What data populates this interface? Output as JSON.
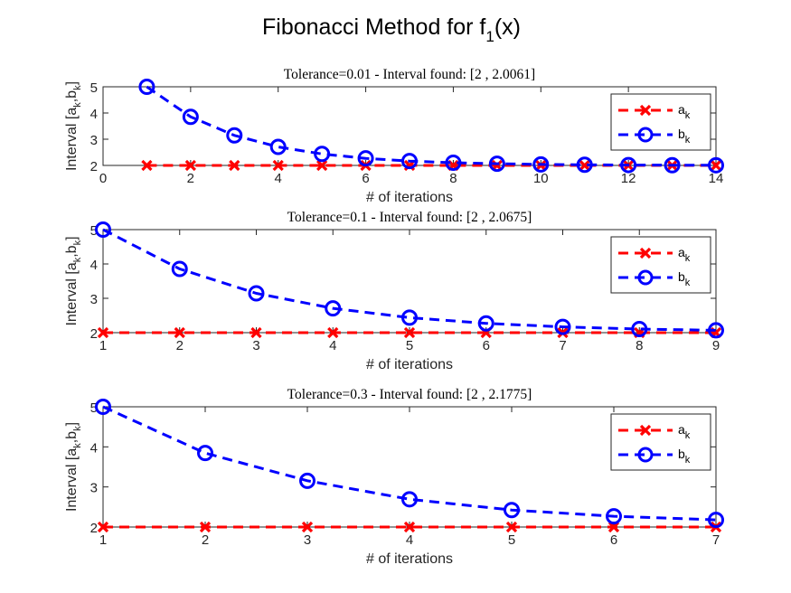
{
  "figure": {
    "title_main": "Fibonacci Method for f",
    "title_sub": "1",
    "title_tail": "(x)"
  },
  "colors": {
    "a_series": "#ff0000",
    "b_series": "#0000ff",
    "axis": "#262626"
  },
  "chart_data": [
    {
      "type": "line",
      "title": "Tolerance=0.01 - Interval found: [2 , 2.0061]",
      "xlabel": "# of iterations",
      "ylabel": {
        "main": "Interval [a",
        "s1": "k",
        "mid": ",b",
        "s2": "k",
        "end": "]"
      },
      "xlim": [
        0,
        14
      ],
      "ylim": [
        2,
        5
      ],
      "xticks": [
        0,
        2,
        4,
        6,
        8,
        10,
        12,
        14
      ],
      "yticks": [
        2,
        3,
        4,
        5
      ],
      "legend_position": "top-right",
      "x": [
        1,
        2,
        3,
        4,
        5,
        6,
        7,
        8,
        9,
        10,
        11,
        12,
        13,
        14
      ],
      "series": [
        {
          "key": "a",
          "label": "a",
          "label_sub": "k",
          "marker": "x",
          "values": [
            2,
            2,
            2,
            2,
            2,
            2,
            2,
            2,
            2,
            2,
            2,
            2,
            2,
            2
          ]
        },
        {
          "key": "b",
          "label": "b",
          "label_sub": "k",
          "marker": "o",
          "values": [
            5,
            3.854,
            3.146,
            2.708,
            2.438,
            2.27,
            2.167,
            2.103,
            2.064,
            2.039,
            2.025,
            2.015,
            2.01,
            2.0061
          ]
        }
      ]
    },
    {
      "type": "line",
      "title": "Tolerance=0.1 - Interval found: [2 , 2.0675]",
      "xlabel": "# of iterations",
      "ylabel": {
        "main": "Interval [a",
        "s1": "k",
        "mid": ",b",
        "s2": "k",
        "end": "]"
      },
      "xlim": [
        1,
        9
      ],
      "ylim": [
        2,
        5
      ],
      "xticks": [
        1,
        2,
        3,
        4,
        5,
        6,
        7,
        8,
        9
      ],
      "yticks": [
        2,
        3,
        4,
        5
      ],
      "legend_position": "top-right",
      "x": [
        1,
        2,
        3,
        4,
        5,
        6,
        7,
        8,
        9
      ],
      "series": [
        {
          "key": "a",
          "label": "a",
          "label_sub": "k",
          "marker": "x",
          "values": [
            2,
            2,
            2,
            2,
            2,
            2,
            2,
            2,
            2
          ]
        },
        {
          "key": "b",
          "label": "b",
          "label_sub": "k",
          "marker": "o",
          "values": [
            5,
            3.854,
            3.146,
            2.708,
            2.438,
            2.27,
            2.168,
            2.105,
            2.0675
          ]
        }
      ]
    },
    {
      "type": "line",
      "title": "Tolerance=0.3 - Interval found: [2 , 2.1775]",
      "xlabel": "# of iterations",
      "ylabel": {
        "main": "Interval [a",
        "s1": "k",
        "mid": ",b",
        "s2": "k",
        "end": "]"
      },
      "xlim": [
        1,
        7
      ],
      "ylim": [
        2,
        5
      ],
      "xticks": [
        1,
        2,
        3,
        4,
        5,
        6,
        7
      ],
      "yticks": [
        2,
        3,
        4,
        5
      ],
      "legend_position": "top-right",
      "x": [
        1,
        2,
        3,
        4,
        5,
        6,
        7
      ],
      "series": [
        {
          "key": "a",
          "label": "a",
          "label_sub": "k",
          "marker": "x",
          "values": [
            2,
            2,
            2,
            2,
            2,
            2,
            2
          ]
        },
        {
          "key": "b",
          "label": "b",
          "label_sub": "k",
          "marker": "o",
          "values": [
            5,
            3.846,
            3.154,
            2.692,
            2.423,
            2.269,
            2.1775
          ]
        }
      ]
    }
  ]
}
